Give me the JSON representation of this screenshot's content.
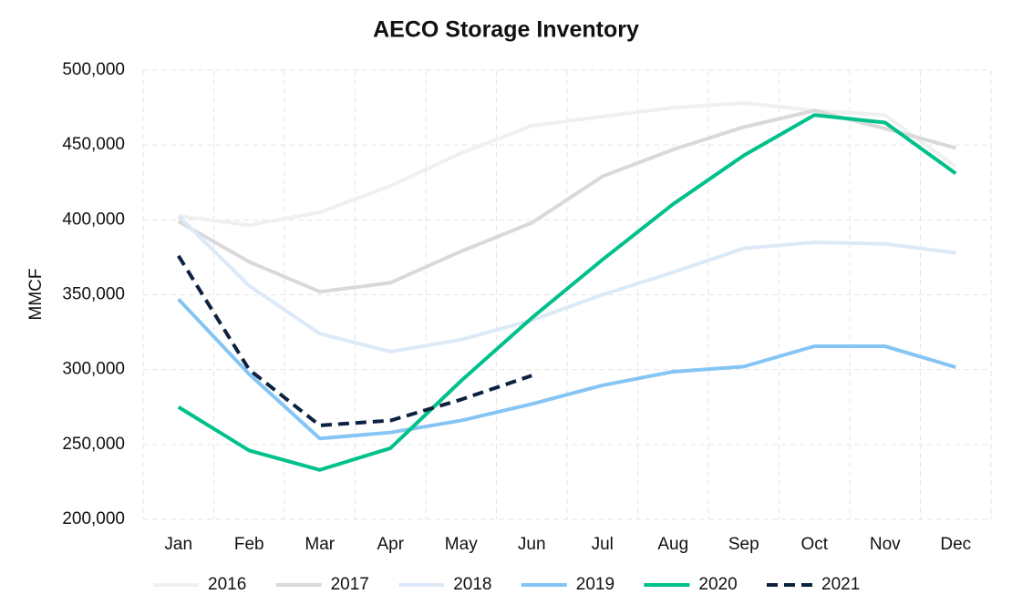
{
  "chart_data": {
    "type": "line",
    "title": "AECO Storage Inventory",
    "y_label": "MMCF",
    "categories": [
      "Jan",
      "Feb",
      "Mar",
      "Apr",
      "May",
      "Jun",
      "Jul",
      "Aug",
      "Sep",
      "Oct",
      "Nov",
      "Dec"
    ],
    "series": [
      {
        "name": "2016",
        "color": "#f0f0f0",
        "style": "solid",
        "values": [
          402600,
          396500,
          405000,
          422700,
          444600,
          462900,
          469000,
          475000,
          478000,
          473000,
          470000,
          435500
        ]
      },
      {
        "name": "2017",
        "color": "#d9d9d9",
        "style": "solid",
        "values": [
          399000,
          372000,
          352000,
          358000,
          379000,
          398000,
          429000,
          447000,
          462000,
          473000,
          461000,
          448000
        ]
      },
      {
        "name": "2018",
        "color": "#dce9f7",
        "style": "solid",
        "values": [
          402600,
          356000,
          324000,
          312000,
          320000,
          333000,
          350000,
          365000,
          381000,
          385000,
          384000,
          378000
        ]
      },
      {
        "name": "2019",
        "color": "#85c5f5",
        "style": "solid",
        "values": [
          347000,
          297000,
          254000,
          258000,
          266000,
          277000,
          289500,
          298600,
          302000,
          315600,
          315600,
          301600
        ]
      },
      {
        "name": "2020",
        "color": "#00c08b",
        "style": "solid",
        "values": [
          275000,
          246000,
          233000,
          247500,
          292500,
          334500,
          373400,
          410500,
          443000,
          470000,
          465000,
          431000
        ]
      },
      {
        "name": "2021",
        "color": "#0d2240",
        "style": "dashed",
        "values": [
          376000,
          300000,
          262700,
          266000,
          280000,
          296000,
          null,
          null,
          null,
          null,
          null,
          null
        ]
      }
    ],
    "ylim": [
      200000,
      500000
    ],
    "yticks": [
      {
        "value": 200000,
        "label": "200,000"
      },
      {
        "value": 250000,
        "label": "250,000"
      },
      {
        "value": 300000,
        "label": "300,000"
      },
      {
        "value": 350000,
        "label": "350,000"
      },
      {
        "value": 400000,
        "label": "400,000"
      },
      {
        "value": 450000,
        "label": "450,000"
      },
      {
        "value": 500000,
        "label": "500,000"
      }
    ],
    "grid": true,
    "legend": "bottom"
  }
}
